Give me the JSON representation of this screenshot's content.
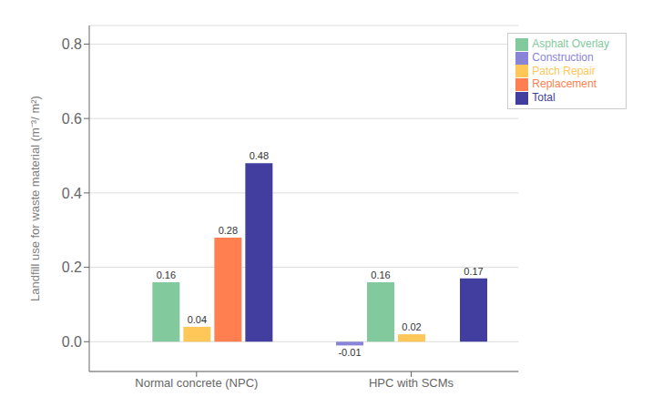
{
  "chart_data": {
    "type": "bar",
    "categories": [
      "Normal concrete (NPC)",
      "HPC with SCMs"
    ],
    "series": [
      {
        "name": "Construction",
        "color": "#8884d8",
        "values": [
          null,
          -0.01
        ]
      },
      {
        "name": "Asphalt Overlay",
        "color": "#82ca9d",
        "values": [
          0.16,
          0.16
        ]
      },
      {
        "name": "Patch Repair",
        "color": "#ffc658",
        "values": [
          0.04,
          0.02
        ]
      },
      {
        "name": "Replacement",
        "color": "#ff7f50",
        "values": [
          0.28,
          null
        ]
      },
      {
        "name": "Total",
        "color": "#413ea0",
        "values": [
          0.48,
          0.17
        ]
      }
    ],
    "ylabel": "Landfill use for waste material (m⁻³/ m²)",
    "ylim": [
      -0.08,
      0.85
    ],
    "yticks": [
      {
        "value": 0.0,
        "label": "0.0"
      },
      {
        "value": 0.2,
        "label": "0.2"
      },
      {
        "value": 0.4,
        "label": "0.4"
      },
      {
        "value": 0.6,
        "label": "0.6"
      },
      {
        "value": 0.8,
        "label": "0.8"
      }
    ],
    "grid": true,
    "legend": "upper right",
    "data_labels": true
  }
}
